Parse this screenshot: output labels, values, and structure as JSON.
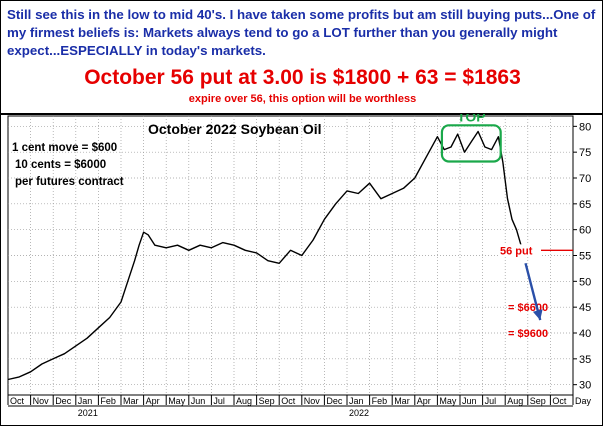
{
  "commentary": {
    "text": "Still see this in the low to mid 40's. I have taken some profits but am still buying puts...One of my firmest beliefs is: Markets always tend to go a LOT further than you generally might expect...ESPECIALLY in today's markets.",
    "headline": "October 56 put at 3.00 is $1800 + 63 = $1863",
    "subnote": "expire over 56, this option will be worthless"
  },
  "colors": {
    "text_blue": "#1a2ea8",
    "accent_red": "#e60000",
    "top_box_green": "#1aa84a",
    "arrow_blue": "#2a4fa8",
    "price_line": "#000000"
  },
  "chart_data": {
    "type": "line",
    "title": "October 2022 Soybean Oil",
    "notes": [
      "1 cent move = $600",
      "10 cents = $6000",
      "per futures contract"
    ],
    "top_label": "TOP",
    "put_label": "56 put",
    "put_level": 56,
    "targets": [
      {
        "label": "= $6600",
        "value": 45
      },
      {
        "label": "= $9600",
        "value": 40
      }
    ],
    "x_ticks": [
      "Oct",
      "Nov",
      "Dec",
      "Jan",
      "Feb",
      "Mar",
      "Apr",
      "May",
      "Jun",
      "Jul",
      "Aug",
      "Sep",
      "Oct",
      "Nov",
      "Dec",
      "Jan",
      "Feb",
      "Mar",
      "Apr",
      "May",
      "Jun",
      "Jul",
      "Aug",
      "Sep",
      "Oct"
    ],
    "x_end_label": "Day",
    "x_years": [
      {
        "label": "2021",
        "month_index": 3
      },
      {
        "label": "2022",
        "month_index": 15
      }
    ],
    "y_ticks": [
      30,
      35,
      40,
      45,
      50,
      55,
      60,
      65,
      70,
      75,
      80
    ],
    "ylim": [
      28,
      82
    ],
    "grid": true,
    "series": [
      {
        "x": [
          0,
          0.5,
          1,
          1.5,
          2,
          2.5,
          3,
          3.5,
          4,
          4.5,
          5,
          5.3,
          5.6,
          5.8,
          6,
          6.2,
          6.5,
          7,
          7.5,
          8,
          8.5,
          9,
          9.5,
          10,
          10.5,
          11,
          11.5,
          12,
          12.5,
          13,
          13.5,
          14,
          14.5,
          15,
          15.5,
          16,
          16.5,
          17,
          17.5,
          18,
          18.5,
          19,
          19.3,
          19.6,
          19.9,
          20.2,
          20.5,
          20.8,
          21.1,
          21.4,
          21.7,
          21.9,
          22.1,
          22.3,
          22.5,
          22.7,
          22.85,
          23
        ],
        "y": [
          31,
          31.5,
          32.5,
          34,
          35,
          36,
          37.5,
          39,
          41,
          43,
          46,
          50,
          54,
          57,
          59.5,
          59,
          57,
          56.5,
          57,
          56,
          57,
          56.5,
          57.5,
          57,
          56,
          55.5,
          54,
          53.5,
          56,
          55,
          58,
          62,
          65,
          67.5,
          67,
          69,
          66,
          67,
          68,
          70,
          74,
          78,
          75.5,
          76,
          78.5,
          75,
          77,
          79,
          76,
          75.5,
          78,
          73,
          66,
          62,
          60,
          57,
          56.5,
          56
        ]
      }
    ]
  }
}
